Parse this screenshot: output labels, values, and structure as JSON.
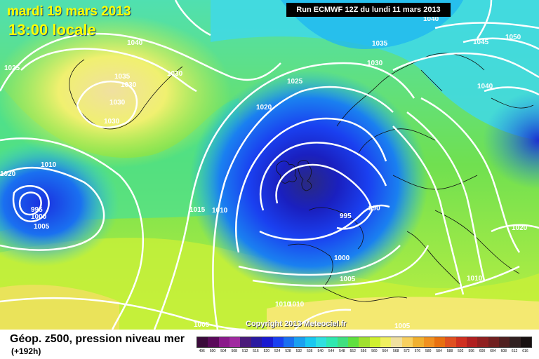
{
  "header": {
    "date": "mardi 19 mars 2013",
    "time": "13:00 locale",
    "run": "Run ECMWF 12Z du lundi 11 mars 2013"
  },
  "copyright": "Copyright 2013 Meteociel.fr",
  "legend": {
    "title": "Géop. z500, pression niveau mer",
    "subtitle": "(+192h)",
    "scale_values": [
      "496",
      "500",
      "504",
      "508",
      "512",
      "516",
      "520",
      "524",
      "528",
      "532",
      "536",
      "540",
      "544",
      "548",
      "552",
      "556",
      "560",
      "564",
      "568",
      "572",
      "576",
      "580",
      "584",
      "588",
      "592",
      "596",
      "600",
      "604",
      "608",
      "612",
      "616"
    ],
    "scale_colors": [
      "#3a0a3a",
      "#5a0a5a",
      "#8a1a8a",
      "#a02aa0",
      "#4a1a7a",
      "#2a1aa0",
      "#1a1ad0",
      "#1a40f0",
      "#1a70f0",
      "#1aa0f0",
      "#1ac8f0",
      "#30e0e0",
      "#30e8b0",
      "#40e080",
      "#60e040",
      "#a0e030",
      "#d0f030",
      "#f0f060",
      "#f0e0a0",
      "#f8d060",
      "#f0b030",
      "#f09020",
      "#e87010",
      "#e05020",
      "#d03020",
      "#b02020",
      "#902020",
      "#702020",
      "#502020",
      "#302020",
      "#181010"
    ]
  },
  "isobar_labels": [
    {
      "text": "1040",
      "id": "l1040a"
    },
    {
      "text": "1035",
      "id": "l1035a"
    },
    {
      "text": "1030",
      "id": "l1030a"
    },
    {
      "text": "1030",
      "id": "l1030b"
    },
    {
      "text": "1030",
      "id": "l1030c"
    },
    {
      "text": "1030",
      "id": "l1030d"
    },
    {
      "text": "1025",
      "id": "l1025a"
    },
    {
      "text": "1020",
      "id": "l1020a"
    },
    {
      "text": "1010",
      "id": "l1010a"
    },
    {
      "text": "995",
      "id": "l995a"
    },
    {
      "text": "1000",
      "id": "l1000a"
    },
    {
      "text": "1005",
      "id": "l1005a"
    },
    {
      "text": "1015",
      "id": "l1015a"
    },
    {
      "text": "1010",
      "id": "l1010b"
    },
    {
      "text": "1025",
      "id": "l1025b"
    },
    {
      "text": "1020",
      "id": "l1020b"
    },
    {
      "text": "995",
      "id": "l995b"
    },
    {
      "text": "990",
      "id": "l990a"
    },
    {
      "text": "1000",
      "id": "l1000b"
    },
    {
      "text": "1005",
      "id": "l1005b"
    },
    {
      "text": "1010",
      "id": "l1010c"
    },
    {
      "text": "1010",
      "id": "l1010d"
    },
    {
      "text": "1005",
      "id": "l1005c"
    },
    {
      "text": "1035",
      "id": "l1035b"
    },
    {
      "text": "1030",
      "id": "l1030e"
    },
    {
      "text": "1045",
      "id": "l1045a"
    },
    {
      "text": "1050",
      "id": "l1050a"
    },
    {
      "text": "1040",
      "id": "l1040b"
    },
    {
      "text": "1040",
      "id": "l1040c"
    },
    {
      "text": "1020",
      "id": "l1020c"
    },
    {
      "text": "1010",
      "id": "l1010e"
    },
    {
      "text": "1005",
      "id": "l1005d"
    }
  ]
}
